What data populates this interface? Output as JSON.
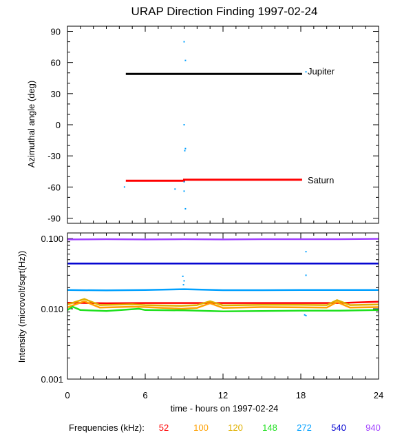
{
  "chart_data": {
    "title": "URAP Direction Finding  1997-02-24",
    "xlabel": "time - hours on 1997-02-24",
    "xlim": [
      0,
      24
    ],
    "xticks": [
      0,
      6,
      12,
      18,
      24
    ],
    "xtick_labels": [
      "0",
      "6",
      "12",
      "18",
      "24"
    ],
    "panels": [
      {
        "type": "line",
        "ylabel": "Azimuthal angle (deg)",
        "ylim": [
          -95,
          95
        ],
        "yticks": [
          90,
          60,
          30,
          0,
          -30,
          -60,
          -90
        ],
        "ytick_labels": [
          "90",
          "60",
          "30",
          "0",
          "-30",
          "-60",
          "-90"
        ],
        "series": [
          {
            "name": "Jupiter",
            "label": "Jupiter",
            "color": "#000000",
            "points": [
              [
                4.5,
                49
              ],
              [
                18.1,
                49
              ]
            ]
          },
          {
            "name": "Saturn",
            "label": "Saturn",
            "color": "#ff0000",
            "points": [
              [
                4.5,
                -54
              ],
              [
                9.0,
                -54
              ],
              [
                9.0,
                -53
              ],
              [
                18.1,
                -53
              ]
            ]
          }
        ],
        "scatter": {
          "color": "#00a0ff",
          "points": [
            [
              9.0,
              80
            ],
            [
              9.1,
              62
            ],
            [
              9.0,
              0
            ],
            [
              9.1,
              -23
            ],
            [
              9.05,
              -25
            ],
            [
              4.4,
              -60
            ],
            [
              8.3,
              -62
            ],
            [
              9.0,
              -55
            ],
            [
              9.0,
              -64
            ],
            [
              9.1,
              -81
            ],
            [
              18.4,
              51
            ]
          ]
        }
      },
      {
        "type": "line",
        "ylabel": "Intensity (microvolt/sqrt(Hz))",
        "yscale": "log",
        "ylim": [
          0.001,
          0.12
        ],
        "yticks": [
          0.1,
          0.01,
          0.001
        ],
        "ytick_labels": [
          "0.100",
          "0.010",
          "0.001"
        ],
        "series": [
          {
            "name": "940",
            "color": "#a040ff",
            "x": [
              0,
              3,
              6,
              9,
              12,
              15,
              18,
              21,
              24
            ],
            "values": [
              0.097,
              0.098,
              0.097,
              0.098,
              0.097,
              0.098,
              0.098,
              0.098,
              0.099
            ]
          },
          {
            "name": "540",
            "color": "#0000d0",
            "x": [
              0,
              3,
              6,
              9,
              12,
              15,
              18,
              21,
              24
            ],
            "values": [
              0.044,
              0.044,
              0.044,
              0.044,
              0.044,
              0.044,
              0.044,
              0.044,
              0.044
            ]
          },
          {
            "name": "272",
            "color": "#00a0ff",
            "x": [
              0,
              3,
              6,
              9,
              12,
              15,
              18,
              21,
              24
            ],
            "values": [
              0.0185,
              0.0183,
              0.0185,
              0.019,
              0.0184,
              0.0184,
              0.0185,
              0.0185,
              0.0185
            ]
          },
          {
            "name": "52",
            "color": "#ff0000",
            "x": [
              0,
              3,
              6,
              9,
              12,
              15,
              18,
              21,
              24
            ],
            "values": [
              0.0122,
              0.012,
              0.0121,
              0.0121,
              0.0121,
              0.0121,
              0.0121,
              0.0121,
              0.0126
            ]
          },
          {
            "name": "120",
            "color": "#e0b000",
            "x": [
              0,
              1.3,
              2.5,
              5.0,
              6.0,
              8.8,
              10.0,
              11.0,
              12.0,
              15.0,
              18.0,
              20.0,
              20.8,
              21.8,
              24
            ],
            "values": [
              0.0115,
              0.0138,
              0.0113,
              0.0116,
              0.0113,
              0.011,
              0.0113,
              0.0128,
              0.0112,
              0.0114,
              0.0114,
              0.0113,
              0.0133,
              0.0113,
              0.0115
            ]
          },
          {
            "name": "100",
            "color": "#ffa000",
            "x": [
              0,
              1.3,
              2.5,
              5.0,
              6.0,
              8.8,
              10.0,
              11.0,
              12.0,
              15.0,
              18.0,
              20.0,
              20.8,
              21.8,
              24
            ],
            "values": [
              0.0105,
              0.0128,
              0.0104,
              0.0107,
              0.0106,
              0.01,
              0.0103,
              0.012,
              0.0103,
              0.0106,
              0.0105,
              0.0104,
              0.0125,
              0.0104,
              0.0106
            ]
          },
          {
            "name": "148",
            "color": "#20e020",
            "x": [
              0,
              0.4,
              1.0,
              3.0,
              5.5,
              6.0,
              9.0,
              12.0,
              15.0,
              18.0,
              21.0,
              24
            ],
            "values": [
              0.0096,
              0.0107,
              0.0096,
              0.0093,
              0.01,
              0.0096,
              0.0095,
              0.0092,
              0.0093,
              0.0094,
              0.0094,
              0.0096
            ]
          }
        ],
        "scatter": {
          "color": "#00a0ff",
          "points": [
            [
              8.9,
              0.029
            ],
            [
              9.0,
              0.025
            ],
            [
              8.95,
              0.022
            ],
            [
              18.4,
              0.03
            ],
            [
              18.4,
              0.065
            ],
            [
              18.4,
              0.008
            ],
            [
              18.3,
              0.0082
            ]
          ]
        }
      }
    ],
    "legend": {
      "title": "Frequencies (kHz):",
      "placement": "bottom",
      "items": [
        {
          "label": "52",
          "color": "#ff0000"
        },
        {
          "label": "100",
          "color": "#ffa000"
        },
        {
          "label": "120",
          "color": "#e0b000"
        },
        {
          "label": "148",
          "color": "#20e020"
        },
        {
          "label": "272",
          "color": "#00a0ff"
        },
        {
          "label": "540",
          "color": "#0000d0"
        },
        {
          "label": "940",
          "color": "#a040ff"
        }
      ]
    }
  }
}
